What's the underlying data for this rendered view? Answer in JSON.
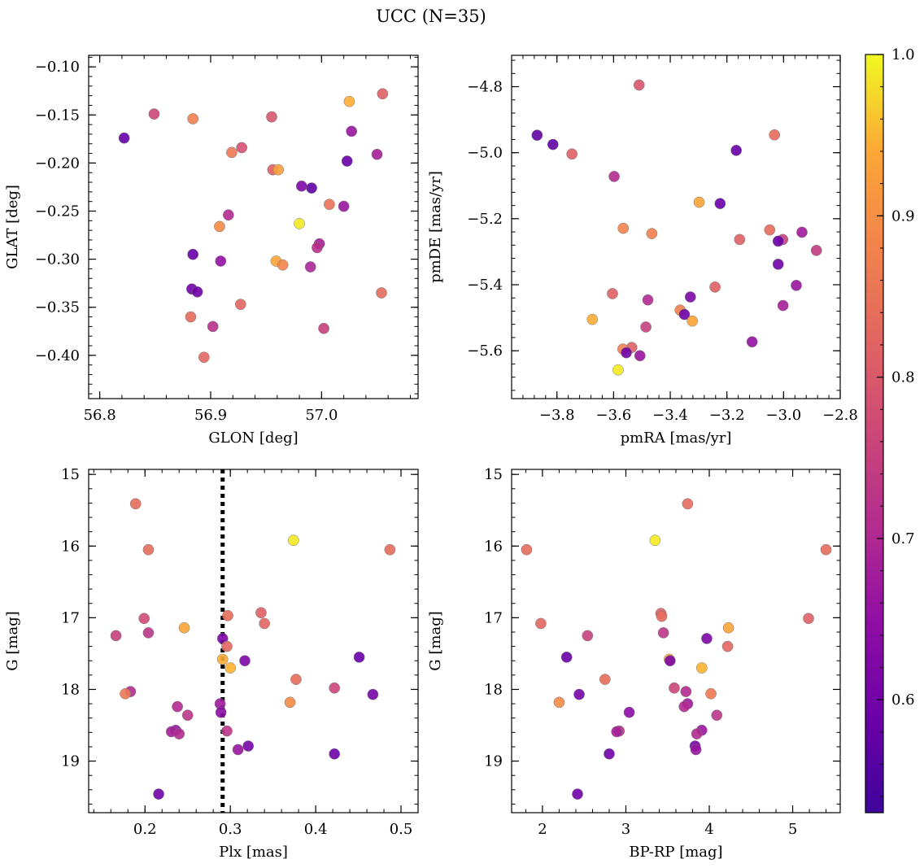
{
  "title": "UCC (N=35)",
  "colorbar": {
    "ticks": [
      0.6,
      0.7,
      0.8,
      0.9,
      1.0
    ],
    "tick_labels": [
      "0.6",
      "0.7",
      "0.8",
      "0.9",
      "1.0"
    ],
    "min": 0.53,
    "max": 1.0
  },
  "chart_data": [
    {
      "type": "scatter",
      "xlabel": "GLON [deg]",
      "ylabel": "GLAT [deg]",
      "xlim": [
        56.79,
        57.087
      ],
      "ylim": [
        -0.445,
        -0.088
      ],
      "xticks": [
        56.8,
        56.9,
        57.0
      ],
      "xtick_labels": [
        "56.8",
        "56.9",
        "57.0"
      ],
      "yticks": [
        -0.1,
        -0.15,
        -0.2,
        -0.25,
        -0.3,
        -0.35,
        -0.4
      ],
      "ytick_labels": [
        "−0.10",
        "−0.15",
        "−0.20",
        "−0.25",
        "−0.30",
        "−0.35",
        "−0.40"
      ],
      "points": [
        {
          "x": 56.822,
          "y": -0.174,
          "c": 0.57
        },
        {
          "x": 56.849,
          "y": -0.149,
          "c": 0.73
        },
        {
          "x": 56.884,
          "y": -0.154,
          "c": 0.83
        },
        {
          "x": 56.955,
          "y": -0.152,
          "c": 0.76
        },
        {
          "x": 57.025,
          "y": -0.136,
          "c": 0.9
        },
        {
          "x": 57.055,
          "y": -0.128,
          "c": 0.78
        },
        {
          "x": 57.027,
          "y": -0.167,
          "c": 0.64
        },
        {
          "x": 57.05,
          "y": -0.191,
          "c": 0.66
        },
        {
          "x": 56.919,
          "y": -0.189,
          "c": 0.82
        },
        {
          "x": 56.928,
          "y": -0.184,
          "c": 0.75
        },
        {
          "x": 56.956,
          "y": -0.207,
          "c": 0.78
        },
        {
          "x": 56.961,
          "y": -0.207,
          "c": 0.88
        },
        {
          "x": 56.982,
          "y": -0.224,
          "c": 0.6
        },
        {
          "x": 56.991,
          "y": -0.226,
          "c": 0.56
        },
        {
          "x": 57.023,
          "y": -0.198,
          "c": 0.57
        },
        {
          "x": 57.007,
          "y": -0.243,
          "c": 0.81
        },
        {
          "x": 57.02,
          "y": -0.245,
          "c": 0.64
        },
        {
          "x": 56.916,
          "y": -0.254,
          "c": 0.68
        },
        {
          "x": 56.98,
          "y": -0.263,
          "c": 0.98
        },
        {
          "x": 56.908,
          "y": -0.266,
          "c": 0.85
        },
        {
          "x": 56.998,
          "y": -0.284,
          "c": 0.66
        },
        {
          "x": 56.996,
          "y": -0.288,
          "c": 0.69
        },
        {
          "x": 56.884,
          "y": -0.295,
          "c": 0.57
        },
        {
          "x": 56.909,
          "y": -0.302,
          "c": 0.63
        },
        {
          "x": 56.959,
          "y": -0.302,
          "c": 0.89
        },
        {
          "x": 56.965,
          "y": -0.306,
          "c": 0.84
        },
        {
          "x": 56.99,
          "y": -0.308,
          "c": 0.67
        },
        {
          "x": 56.883,
          "y": -0.331,
          "c": 0.58
        },
        {
          "x": 56.888,
          "y": -0.334,
          "c": 0.58
        },
        {
          "x": 57.054,
          "y": -0.335,
          "c": 0.8
        },
        {
          "x": 56.927,
          "y": -0.347,
          "c": 0.79
        },
        {
          "x": 56.882,
          "y": -0.36,
          "c": 0.8
        },
        {
          "x": 56.902,
          "y": -0.37,
          "c": 0.69
        },
        {
          "x": 57.002,
          "y": -0.372,
          "c": 0.72
        },
        {
          "x": 56.894,
          "y": -0.402,
          "c": 0.79
        }
      ]
    },
    {
      "type": "scatter",
      "xlabel": "pmRA [mas/yr]",
      "ylabel": "pmDE [mas/yr]",
      "xlim": [
        -3.96,
        -2.8
      ],
      "ylim": [
        -5.745,
        -4.705
      ],
      "xticks": [
        -3.8,
        -3.6,
        -3.4,
        -3.2,
        -3.0,
        -2.8
      ],
      "xtick_labels": [
        "−3.8",
        "−3.6",
        "−3.4",
        "−3.2",
        "−3.0",
        "−2.8"
      ],
      "yticks": [
        -4.8,
        -5.0,
        -5.2,
        -5.4,
        -5.6
      ],
      "ytick_labels": [
        "−4.8",
        "−5.0",
        "−5.2",
        "−5.4",
        "−5.6"
      ],
      "points": [
        {
          "x": -3.51,
          "y": -4.795,
          "c": 0.76
        },
        {
          "x": -3.87,
          "y": -4.947,
          "c": 0.56
        },
        {
          "x": -3.814,
          "y": -4.975,
          "c": 0.56
        },
        {
          "x": -3.747,
          "y": -5.004,
          "c": 0.78
        },
        {
          "x": -3.032,
          "y": -4.946,
          "c": 0.8
        },
        {
          "x": -3.167,
          "y": -4.993,
          "c": 0.57
        },
        {
          "x": -3.598,
          "y": -5.072,
          "c": 0.68
        },
        {
          "x": -3.298,
          "y": -5.15,
          "c": 0.89
        },
        {
          "x": -3.224,
          "y": -5.154,
          "c": 0.57
        },
        {
          "x": -3.566,
          "y": -5.229,
          "c": 0.84
        },
        {
          "x": -3.465,
          "y": -5.245,
          "c": 0.83
        },
        {
          "x": -3.049,
          "y": -5.234,
          "c": 0.8
        },
        {
          "x": -2.935,
          "y": -5.241,
          "c": 0.65
        },
        {
          "x": -3.155,
          "y": -5.263,
          "c": 0.78
        },
        {
          "x": -3.003,
          "y": -5.263,
          "c": 0.72
        },
        {
          "x": -3.019,
          "y": -5.268,
          "c": 0.57
        },
        {
          "x": -2.884,
          "y": -5.296,
          "c": 0.71
        },
        {
          "x": -3.019,
          "y": -5.338,
          "c": 0.58
        },
        {
          "x": -3.242,
          "y": -5.407,
          "c": 0.78
        },
        {
          "x": -2.955,
          "y": -5.402,
          "c": 0.64
        },
        {
          "x": -3.604,
          "y": -5.427,
          "c": 0.78
        },
        {
          "x": -3.329,
          "y": -5.437,
          "c": 0.6
        },
        {
          "x": -3.479,
          "y": -5.446,
          "c": 0.68
        },
        {
          "x": -3.002,
          "y": -5.463,
          "c": 0.66
        },
        {
          "x": -3.365,
          "y": -5.477,
          "c": 0.83
        },
        {
          "x": -3.35,
          "y": -5.49,
          "c": 0.58
        },
        {
          "x": -3.675,
          "y": -5.505,
          "c": 0.9
        },
        {
          "x": -3.322,
          "y": -5.51,
          "c": 0.89
        },
        {
          "x": -3.486,
          "y": -5.528,
          "c": 0.72
        },
        {
          "x": -3.111,
          "y": -5.573,
          "c": 0.63
        },
        {
          "x": -3.536,
          "y": -5.59,
          "c": 0.78
        },
        {
          "x": -3.567,
          "y": -5.595,
          "c": 0.83
        },
        {
          "x": -3.555,
          "y": -5.606,
          "c": 0.58
        },
        {
          "x": -3.507,
          "y": -5.615,
          "c": 0.64
        },
        {
          "x": -3.584,
          "y": -5.658,
          "c": 0.98
        }
      ]
    },
    {
      "type": "scatter",
      "xlabel": "Plx [mas]",
      "ylabel": "G [mag]",
      "xlim": [
        0.134,
        0.52
      ],
      "ylim": [
        19.72,
        14.93
      ],
      "xticks": [
        0.2,
        0.3,
        0.4,
        0.5
      ],
      "xtick_labels": [
        "0.2",
        "0.3",
        "0.4",
        "0.5"
      ],
      "yticks": [
        15,
        16,
        17,
        18,
        19
      ],
      "ytick_labels": [
        "15",
        "16",
        "17",
        "18",
        "19"
      ],
      "vline": {
        "x": 0.291,
        "style": "dotted"
      },
      "points": [
        {
          "x": 0.189,
          "y": 15.41,
          "c": 0.8
        },
        {
          "x": 0.374,
          "y": 15.92,
          "c": 0.98
        },
        {
          "x": 0.204,
          "y": 16.05,
          "c": 0.8
        },
        {
          "x": 0.487,
          "y": 16.05,
          "c": 0.8
        },
        {
          "x": 0.336,
          "y": 16.93,
          "c": 0.78
        },
        {
          "x": 0.297,
          "y": 16.97,
          "c": 0.8
        },
        {
          "x": 0.199,
          "y": 17.01,
          "c": 0.74
        },
        {
          "x": 0.34,
          "y": 17.08,
          "c": 0.79
        },
        {
          "x": 0.246,
          "y": 17.14,
          "c": 0.89
        },
        {
          "x": 0.204,
          "y": 17.21,
          "c": 0.7
        },
        {
          "x": 0.166,
          "y": 17.25,
          "c": 0.72
        },
        {
          "x": 0.291,
          "y": 17.29,
          "c": 0.6
        },
        {
          "x": 0.296,
          "y": 17.4,
          "c": 0.79
        },
        {
          "x": 0.451,
          "y": 17.55,
          "c": 0.57
        },
        {
          "x": 0.291,
          "y": 17.58,
          "c": 0.9
        },
        {
          "x": 0.317,
          "y": 17.6,
          "c": 0.6
        },
        {
          "x": 0.3,
          "y": 17.7,
          "c": 0.91
        },
        {
          "x": 0.377,
          "y": 17.86,
          "c": 0.8
        },
        {
          "x": 0.422,
          "y": 17.98,
          "c": 0.73
        },
        {
          "x": 0.183,
          "y": 18.03,
          "c": 0.68
        },
        {
          "x": 0.177,
          "y": 18.06,
          "c": 0.82
        },
        {
          "x": 0.467,
          "y": 18.07,
          "c": 0.59
        },
        {
          "x": 0.37,
          "y": 18.18,
          "c": 0.85
        },
        {
          "x": 0.288,
          "y": 18.2,
          "c": 0.65
        },
        {
          "x": 0.238,
          "y": 18.24,
          "c": 0.68
        },
        {
          "x": 0.289,
          "y": 18.32,
          "c": 0.62
        },
        {
          "x": 0.25,
          "y": 18.36,
          "c": 0.7
        },
        {
          "x": 0.236,
          "y": 18.57,
          "c": 0.64
        },
        {
          "x": 0.296,
          "y": 18.58,
          "c": 0.7
        },
        {
          "x": 0.231,
          "y": 18.59,
          "c": 0.66
        },
        {
          "x": 0.24,
          "y": 18.62,
          "c": 0.68
        },
        {
          "x": 0.321,
          "y": 18.79,
          "c": 0.59
        },
        {
          "x": 0.309,
          "y": 18.84,
          "c": 0.64
        },
        {
          "x": 0.422,
          "y": 18.9,
          "c": 0.58
        },
        {
          "x": 0.216,
          "y": 19.46,
          "c": 0.58
        }
      ]
    },
    {
      "type": "scatter",
      "xlabel": "BP-RP [mag]",
      "ylabel": "G [mag]",
      "xlim": [
        1.63,
        5.57
      ],
      "ylim": [
        19.72,
        14.93
      ],
      "xticks": [
        2,
        3,
        4,
        5
      ],
      "xtick_labels": [
        "2",
        "3",
        "4",
        "5"
      ],
      "yticks": [
        15,
        16,
        17,
        18,
        19
      ],
      "ytick_labels": [
        "15",
        "16",
        "17",
        "18",
        "19"
      ],
      "points": [
        {
          "x": 3.74,
          "y": 15.41,
          "c": 0.8
        },
        {
          "x": 3.35,
          "y": 15.92,
          "c": 0.98
        },
        {
          "x": 1.81,
          "y": 16.05,
          "c": 0.8
        },
        {
          "x": 5.4,
          "y": 16.05,
          "c": 0.8
        },
        {
          "x": 3.42,
          "y": 16.94,
          "c": 0.78
        },
        {
          "x": 3.43,
          "y": 16.98,
          "c": 0.8
        },
        {
          "x": 5.19,
          "y": 17.01,
          "c": 0.78
        },
        {
          "x": 1.98,
          "y": 17.08,
          "c": 0.79
        },
        {
          "x": 4.23,
          "y": 17.14,
          "c": 0.89
        },
        {
          "x": 3.45,
          "y": 17.21,
          "c": 0.7
        },
        {
          "x": 2.54,
          "y": 17.25,
          "c": 0.72
        },
        {
          "x": 3.97,
          "y": 17.29,
          "c": 0.6
        },
        {
          "x": 4.22,
          "y": 17.4,
          "c": 0.79
        },
        {
          "x": 2.29,
          "y": 17.55,
          "c": 0.57
        },
        {
          "x": 3.52,
          "y": 17.58,
          "c": 0.9
        },
        {
          "x": 3.53,
          "y": 17.6,
          "c": 0.6
        },
        {
          "x": 3.91,
          "y": 17.7,
          "c": 0.91
        },
        {
          "x": 2.75,
          "y": 17.86,
          "c": 0.8
        },
        {
          "x": 3.58,
          "y": 17.98,
          "c": 0.73
        },
        {
          "x": 3.72,
          "y": 18.03,
          "c": 0.68
        },
        {
          "x": 4.02,
          "y": 18.06,
          "c": 0.82
        },
        {
          "x": 2.44,
          "y": 18.07,
          "c": 0.59
        },
        {
          "x": 2.2,
          "y": 18.18,
          "c": 0.85
        },
        {
          "x": 3.74,
          "y": 18.2,
          "c": 0.65
        },
        {
          "x": 3.7,
          "y": 18.24,
          "c": 0.68
        },
        {
          "x": 3.04,
          "y": 18.32,
          "c": 0.62
        },
        {
          "x": 4.09,
          "y": 18.36,
          "c": 0.7
        },
        {
          "x": 3.91,
          "y": 18.57,
          "c": 0.64
        },
        {
          "x": 2.92,
          "y": 18.58,
          "c": 0.7
        },
        {
          "x": 2.89,
          "y": 18.59,
          "c": 0.66
        },
        {
          "x": 3.85,
          "y": 18.62,
          "c": 0.68
        },
        {
          "x": 3.83,
          "y": 18.79,
          "c": 0.59
        },
        {
          "x": 3.84,
          "y": 18.84,
          "c": 0.64
        },
        {
          "x": 2.8,
          "y": 18.9,
          "c": 0.58
        },
        {
          "x": 2.42,
          "y": 19.46,
          "c": 0.58
        }
      ]
    }
  ]
}
